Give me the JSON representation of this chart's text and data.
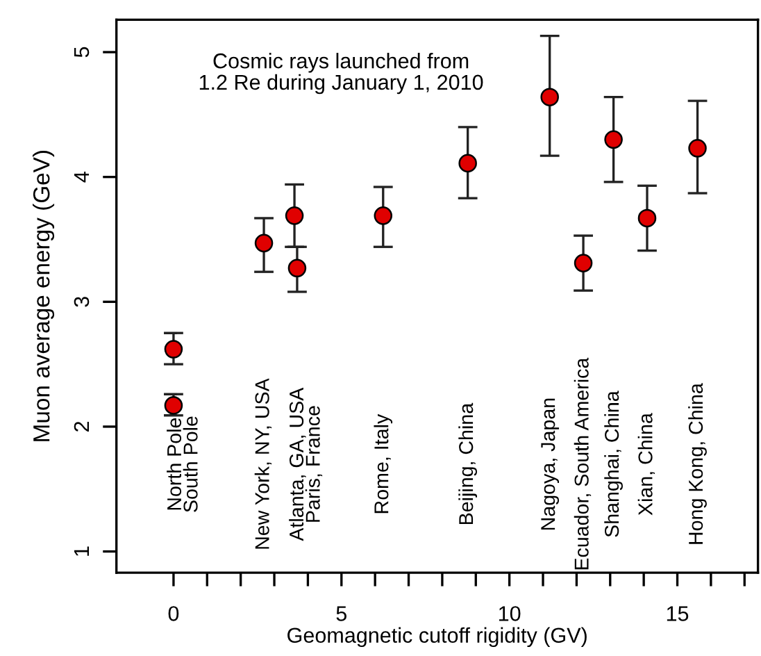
{
  "chart_data": {
    "type": "scatter",
    "xlabel": "Geomagnetic cutoff rigidity (GV)",
    "ylabel": "Muon average energy (GeV)",
    "x": [
      0.0,
      0.0,
      2.69,
      3.6,
      3.68,
      6.24,
      8.76,
      11.2,
      12.2,
      13.1,
      14.1,
      15.6
    ],
    "series": [
      {
        "color": "#e00000",
        "values": [
          2.62,
          2.17,
          3.47,
          3.69,
          3.27,
          3.69,
          4.11,
          4.64,
          3.31,
          4.3,
          3.67,
          4.23
        ],
        "errors": [
          [
            2.5,
            2.75
          ],
          [
            2.09,
            2.26
          ],
          [
            3.24,
            3.67
          ],
          [
            3.44,
            3.94
          ],
          [
            3.08,
            3.44
          ],
          [
            3.44,
            3.92
          ],
          [
            3.83,
            4.4
          ],
          [
            4.17,
            5.13
          ],
          [
            3.09,
            3.53
          ],
          [
            3.96,
            4.64
          ],
          [
            3.41,
            3.93
          ],
          [
            3.87,
            4.61
          ]
        ]
      }
    ],
    "marker": "circle",
    "xlim": [
      -1.7,
      17.4
    ],
    "ylim": [
      0.83,
      5.26
    ],
    "xticks": [
      0,
      {
        "value": 1,
        "label": null
      },
      {
        "value": 2,
        "label": null
      },
      {
        "value": 3,
        "label": null
      },
      {
        "value": 4,
        "label": null
      },
      5,
      {
        "value": 6,
        "label": null
      },
      {
        "value": 7,
        "label": null
      },
      {
        "value": 8,
        "label": null
      },
      {
        "value": 9,
        "label": null
      },
      10,
      {
        "value": 11,
        "label": null
      },
      {
        "value": 12,
        "label": null
      },
      {
        "value": 13,
        "label": null
      },
      {
        "value": 14,
        "label": null
      },
      15,
      {
        "value": 16,
        "label": null
      },
      {
        "value": 17,
        "label": null
      }
    ],
    "yticks": [
      1,
      2,
      3,
      4,
      5
    ],
    "grid": false,
    "legend": false,
    "annotations": [
      "Cosmic rays launched from\n1.2 Re during January 1, 2010",
      "North Pole\nSouth Pole",
      "New York, NY, USA",
      "Atlanta, GA, USA\nParis, France",
      "Rome, Italy",
      "Beijing, China",
      "Nagoya, Japan",
      "Ecuador, South America",
      "Shanghai, China",
      "Xian, China",
      "Hong Kong, China"
    ]
  }
}
